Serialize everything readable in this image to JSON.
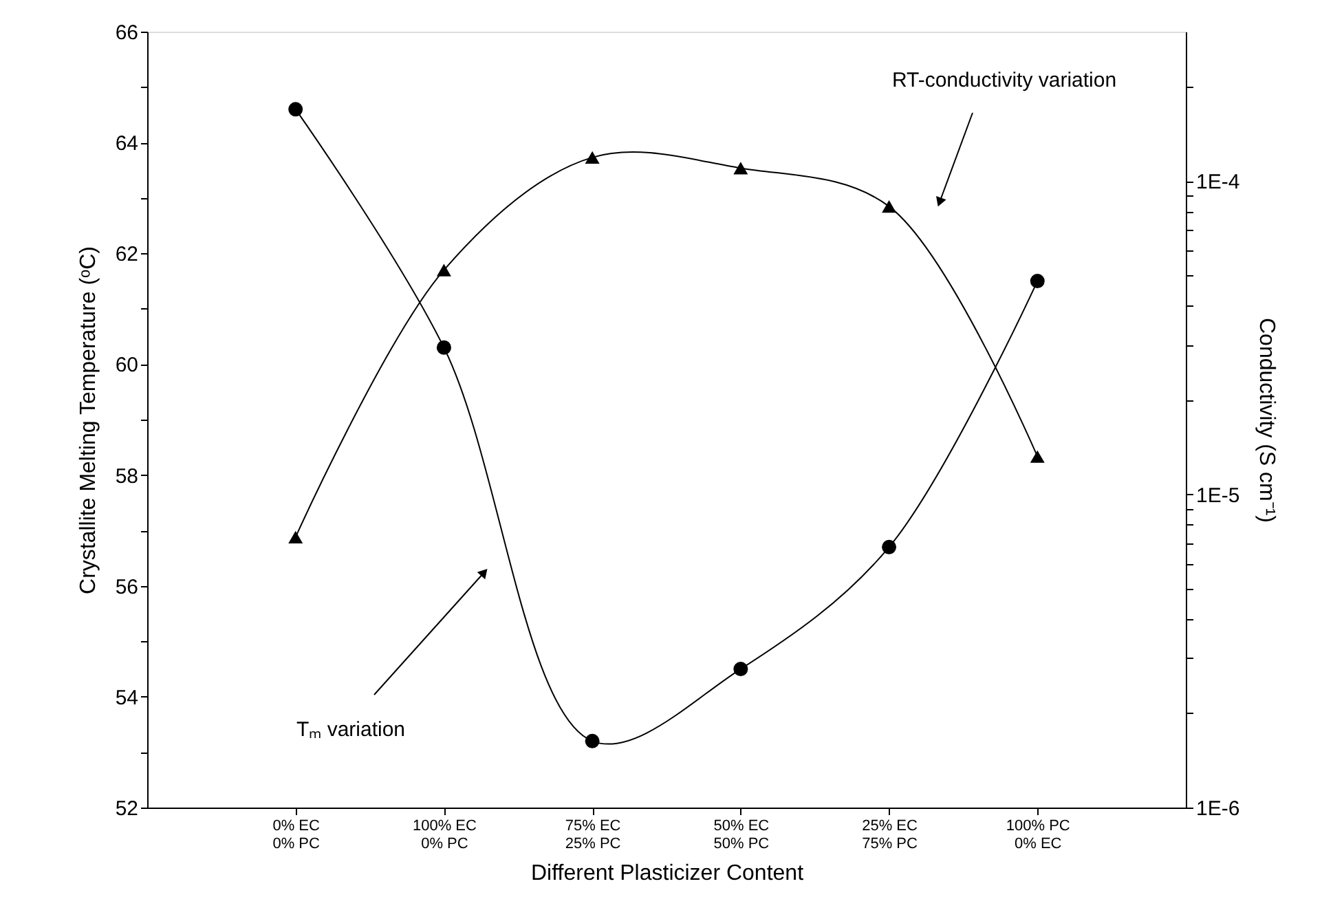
{
  "chart_data": {
    "type": "line",
    "xlabel": "Different Plasticizer Content",
    "ylabel": "Crystallite Melting Temperature (ᵒC)",
    "y2label": "Conductivity (S cm⁻¹)",
    "categories": [
      "0% EC\n0% PC",
      "100% EC\n0% PC",
      "75% EC\n25% PC",
      "50% EC\n50% PC",
      "25% EC\n75% PC",
      "100% PC\n0% EC"
    ],
    "series": [
      {
        "color": "#000000",
        "marker": "circle",
        "values": [
          64.6,
          60.3,
          53.2,
          54.5,
          56.7,
          61.5
        ]
      },
      {
        "color": "#000000",
        "marker": "triangle",
        "axis": "y2",
        "values": [
          7.3e-06,
          5.2e-05,
          0.000119,
          0.00011,
          8.3e-05,
          1.32e-05
        ]
      }
    ],
    "ylim": [
      52,
      66
    ],
    "yticks": [
      52,
      {
        "value": 53,
        "label": null
      },
      54,
      {
        "value": 55,
        "label": null
      },
      56,
      {
        "value": 57,
        "label": null
      },
      58,
      {
        "value": 59,
        "label": null
      },
      60,
      {
        "value": 61,
        "label": null
      },
      62,
      {
        "value": 63,
        "label": null
      },
      64,
      {
        "value": 65,
        "label": null
      },
      66
    ],
    "y2lim": [
      1e-06,
      0.0003
    ],
    "y2ticks": [
      {
        "value": 1e-06,
        "label": "1E-6"
      },
      {
        "value": 2e-06,
        "label": null
      },
      {
        "value": 3e-06,
        "label": null
      },
      {
        "value": 4e-06,
        "label": null
      },
      {
        "value": 5e-06,
        "label": null
      },
      {
        "value": 6e-06,
        "label": null
      },
      {
        "value": 7e-06,
        "label": null
      },
      {
        "value": 8e-06,
        "label": null
      },
      {
        "value": 9e-06,
        "label": null
      },
      {
        "value": 1e-05,
        "label": "1E-5"
      },
      {
        "value": 2e-05,
        "label": null
      },
      {
        "value": 3e-05,
        "label": null
      },
      {
        "value": 4e-05,
        "label": null
      },
      {
        "value": 5e-05,
        "label": null
      },
      {
        "value": 6e-05,
        "label": null
      },
      {
        "value": 7e-05,
        "label": null
      },
      {
        "value": 8e-05,
        "label": null
      },
      {
        "value": 9e-05,
        "label": null
      },
      {
        "value": 0.0001,
        "label": "1E-4"
      },
      {
        "value": 0.0002,
        "label": null
      }
    ],
    "log": "y2",
    "grid": false,
    "line_style": "solid",
    "annotations": [
      "RT-conductivity variation",
      "Tₘ variation"
    ]
  }
}
